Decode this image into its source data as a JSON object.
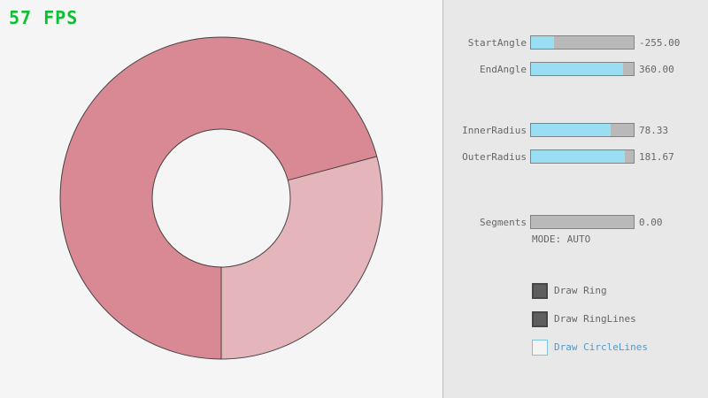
{
  "fps_label": "57 FPS",
  "mode_label": "MODE: AUTO",
  "colors": {
    "fps_green": "#0ac231",
    "bg_left": "#f5f5f5",
    "bg_panel": "#e8e8e8",
    "ring_dark": "#d98994",
    "ring_light": "#e5b5bc",
    "ring_outline": "#2b2b2b",
    "slider_fill": "#9adef4",
    "slider_bg": "#b9b9b9",
    "slider_border": "#838383",
    "text": "#666666",
    "accent_text": "#5499c7",
    "accent_border": "#7fc3e3",
    "checkbox_fill": "#5e5e5e",
    "checkbox_border": "#474747"
  },
  "sliders": [
    {
      "label": "StartAngle",
      "value": "-255.00",
      "fill_pct": 22
    },
    {
      "label": "EndAngle",
      "value": "360.00",
      "fill_pct": 90
    },
    {
      "label": "InnerRadius",
      "value": "78.33",
      "fill_pct": 78
    },
    {
      "label": "OuterRadius",
      "value": "181.67",
      "fill_pct": 91
    },
    {
      "label": "Segments",
      "value": "0.00",
      "fill_pct": 0
    }
  ],
  "checkboxes": [
    {
      "label": "Draw Ring",
      "checked": true
    },
    {
      "label": "Draw RingLines",
      "checked": true
    },
    {
      "label": "Draw CircleLines",
      "checked": false
    }
  ]
}
